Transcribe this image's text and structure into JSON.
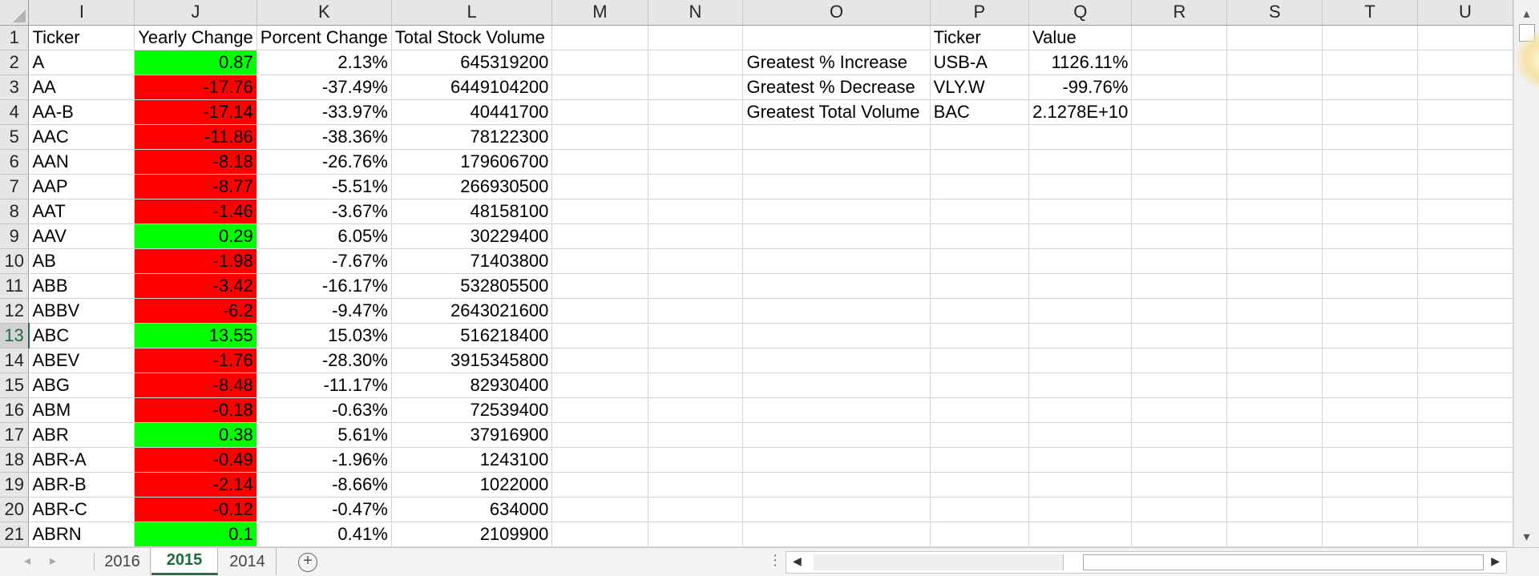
{
  "columns": [
    "I",
    "J",
    "K",
    "L",
    "M",
    "N",
    "O",
    "P",
    "Q",
    "R",
    "S",
    "T",
    "U"
  ],
  "active_row": 13,
  "rows": [
    {
      "n": "1",
      "ticker": "Ticker",
      "yearly": "Yearly Change",
      "pct": "Porcent Change",
      "vol": "Total Stock Volume",
      "o": "",
      "p": "Ticker",
      "q": "Value"
    },
    {
      "n": "2",
      "ticker": "A",
      "yearly": "0.87",
      "pct": "2.13%",
      "vol": "645319200",
      "o": "Greatest % Increase",
      "p": "USB-A",
      "q": "1126.11%"
    },
    {
      "n": "3",
      "ticker": "AA",
      "yearly": "-17.76",
      "pct": "-37.49%",
      "vol": "6449104200",
      "o": "Greatest % Decrease",
      "p": "VLY.W",
      "q": "-99.76%"
    },
    {
      "n": "4",
      "ticker": "AA-B",
      "yearly": "-17.14",
      "pct": "-33.97%",
      "vol": "40441700",
      "o": "Greatest Total Volume",
      "p": "BAC",
      "q": "2.1278E+10"
    },
    {
      "n": "5",
      "ticker": "AAC",
      "yearly": "-11.86",
      "pct": "-38.36%",
      "vol": "78122300",
      "o": "",
      "p": "",
      "q": ""
    },
    {
      "n": "6",
      "ticker": "AAN",
      "yearly": "-8.18",
      "pct": "-26.76%",
      "vol": "179606700",
      "o": "",
      "p": "",
      "q": ""
    },
    {
      "n": "7",
      "ticker": "AAP",
      "yearly": "-8.77",
      "pct": "-5.51%",
      "vol": "266930500",
      "o": "",
      "p": "",
      "q": ""
    },
    {
      "n": "8",
      "ticker": "AAT",
      "yearly": "-1.46",
      "pct": "-3.67%",
      "vol": "48158100",
      "o": "",
      "p": "",
      "q": ""
    },
    {
      "n": "9",
      "ticker": "AAV",
      "yearly": "0.29",
      "pct": "6.05%",
      "vol": "30229400",
      "o": "",
      "p": "",
      "q": ""
    },
    {
      "n": "10",
      "ticker": "AB",
      "yearly": "-1.98",
      "pct": "-7.67%",
      "vol": "71403800",
      "o": "",
      "p": "",
      "q": ""
    },
    {
      "n": "11",
      "ticker": "ABB",
      "yearly": "-3.42",
      "pct": "-16.17%",
      "vol": "532805500",
      "o": "",
      "p": "",
      "q": ""
    },
    {
      "n": "12",
      "ticker": "ABBV",
      "yearly": "-6.2",
      "pct": "-9.47%",
      "vol": "2643021600",
      "o": "",
      "p": "",
      "q": ""
    },
    {
      "n": "13",
      "ticker": "ABC",
      "yearly": "13.55",
      "pct": "15.03%",
      "vol": "516218400",
      "o": "",
      "p": "",
      "q": ""
    },
    {
      "n": "14",
      "ticker": "ABEV",
      "yearly": "-1.76",
      "pct": "-28.30%",
      "vol": "3915345800",
      "o": "",
      "p": "",
      "q": ""
    },
    {
      "n": "15",
      "ticker": "ABG",
      "yearly": "-8.48",
      "pct": "-11.17%",
      "vol": "82930400",
      "o": "",
      "p": "",
      "q": ""
    },
    {
      "n": "16",
      "ticker": "ABM",
      "yearly": "-0.18",
      "pct": "-0.63%",
      "vol": "72539400",
      "o": "",
      "p": "",
      "q": ""
    },
    {
      "n": "17",
      "ticker": "ABR",
      "yearly": "0.38",
      "pct": "5.61%",
      "vol": "37916900",
      "o": "",
      "p": "",
      "q": ""
    },
    {
      "n": "18",
      "ticker": "ABR-A",
      "yearly": "-0.49",
      "pct": "-1.96%",
      "vol": "1243100",
      "o": "",
      "p": "",
      "q": ""
    },
    {
      "n": "19",
      "ticker": "ABR-B",
      "yearly": "-2.14",
      "pct": "-8.66%",
      "vol": "1022000",
      "o": "",
      "p": "",
      "q": ""
    },
    {
      "n": "20",
      "ticker": "ABR-C",
      "yearly": "-0.12",
      "pct": "-0.47%",
      "vol": "634000",
      "o": "",
      "p": "",
      "q": ""
    },
    {
      "n": "21",
      "ticker": "ABRN",
      "yearly": "0.1",
      "pct": "0.41%",
      "vol": "2109900",
      "o": "",
      "p": "",
      "q": ""
    }
  ],
  "tabs": [
    {
      "label": "2016",
      "active": false
    },
    {
      "label": "2015",
      "active": true
    },
    {
      "label": "2014",
      "active": false
    }
  ],
  "colors": {
    "positive_fill": "#00ff00",
    "negative_fill": "#ff0000",
    "accent": "#217346"
  },
  "icons": {
    "add_sheet": "plus-circle-icon",
    "scroll_left": "triangle-left-icon",
    "scroll_right": "triangle-right-icon",
    "scroll_up": "triangle-up-icon",
    "scroll_down": "triangle-down-icon"
  }
}
